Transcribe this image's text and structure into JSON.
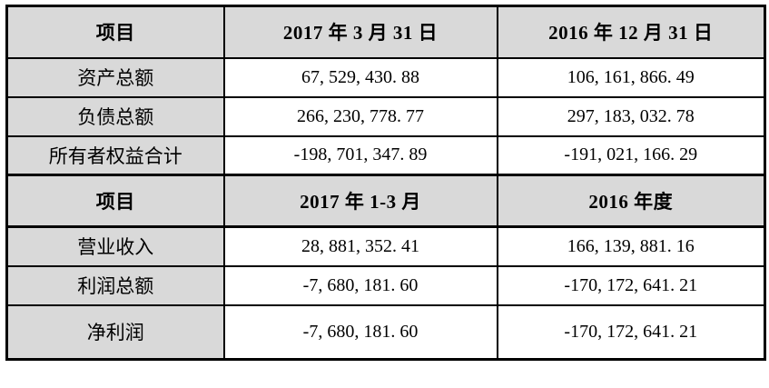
{
  "table": {
    "sections": [
      {
        "headers": [
          "项目",
          "2017 年 3 月 31 日",
          "2016 年 12 月 31 日"
        ],
        "rows": [
          [
            "资产总额",
            "67, 529, 430. 88",
            "106, 161, 866. 49"
          ],
          [
            "负债总额",
            "266, 230, 778. 77",
            "297, 183, 032. 78"
          ],
          [
            "所有者权益合计",
            "-198, 701, 347. 89",
            "-191, 021, 166. 29"
          ]
        ]
      },
      {
        "headers": [
          "项目",
          "2017 年 1-3 月",
          "2016 年度"
        ],
        "rows": [
          [
            "营业收入",
            "28, 881, 352. 41",
            "166, 139, 881. 16"
          ],
          [
            "利润总额",
            "-7, 680, 181. 60",
            "-170, 172, 641. 21"
          ],
          [
            "净利润",
            "-7, 680, 181. 60",
            "-170, 172, 641. 21"
          ]
        ]
      }
    ],
    "colors": {
      "header_shading": "#d9d9d9",
      "border": "#000000",
      "text": "#000000",
      "cell_background": "#ffffff"
    }
  }
}
